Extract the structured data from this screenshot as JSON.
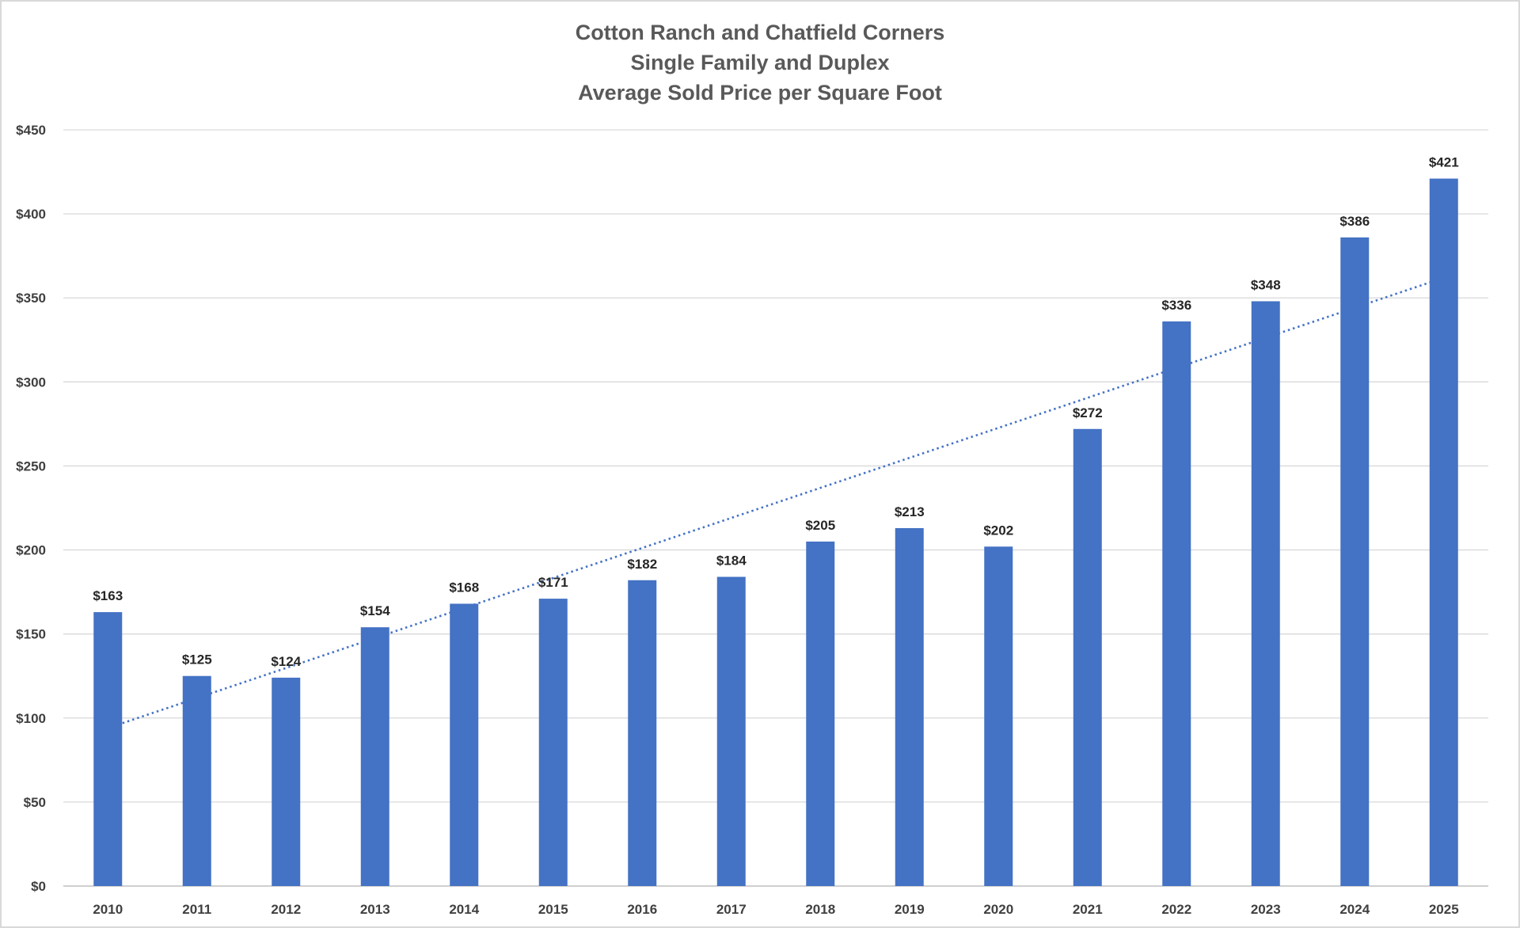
{
  "chart_data": {
    "type": "bar",
    "title": [
      "Cotton Ranch and Chatfield Corners",
      "Single Family and Duplex",
      "Average Sold Price per Square Foot"
    ],
    "categories": [
      "2010",
      "2011",
      "2012",
      "2013",
      "2014",
      "2015",
      "2016",
      "2017",
      "2018",
      "2019",
      "2020",
      "2021",
      "2022",
      "2023",
      "2024",
      "2025"
    ],
    "values": [
      163,
      125,
      124,
      154,
      168,
      171,
      182,
      184,
      205,
      213,
      202,
      272,
      336,
      348,
      386,
      421
    ],
    "value_labels": [
      "$163",
      "$125",
      "$124",
      "$154",
      "$168",
      "$171",
      "$182",
      "$184",
      "$205",
      "$213",
      "$202",
      "$272",
      "$336",
      "$348",
      "$386",
      "$421"
    ],
    "y_ticks": [
      0,
      50,
      100,
      150,
      200,
      250,
      300,
      350,
      400,
      450
    ],
    "y_tick_labels": [
      "$0",
      "$50",
      "$100",
      "$150",
      "$200",
      "$250",
      "$300",
      "$350",
      "$400",
      "$450"
    ],
    "ylim": [
      0,
      450
    ],
    "xlabel": "",
    "ylabel": "",
    "grid": true,
    "legend": "none",
    "bar_color": "#4472c4",
    "trendline": {
      "type": "linear",
      "style": "dotted",
      "color": "#4472c4",
      "start_value": 94,
      "end_value": 362
    }
  }
}
